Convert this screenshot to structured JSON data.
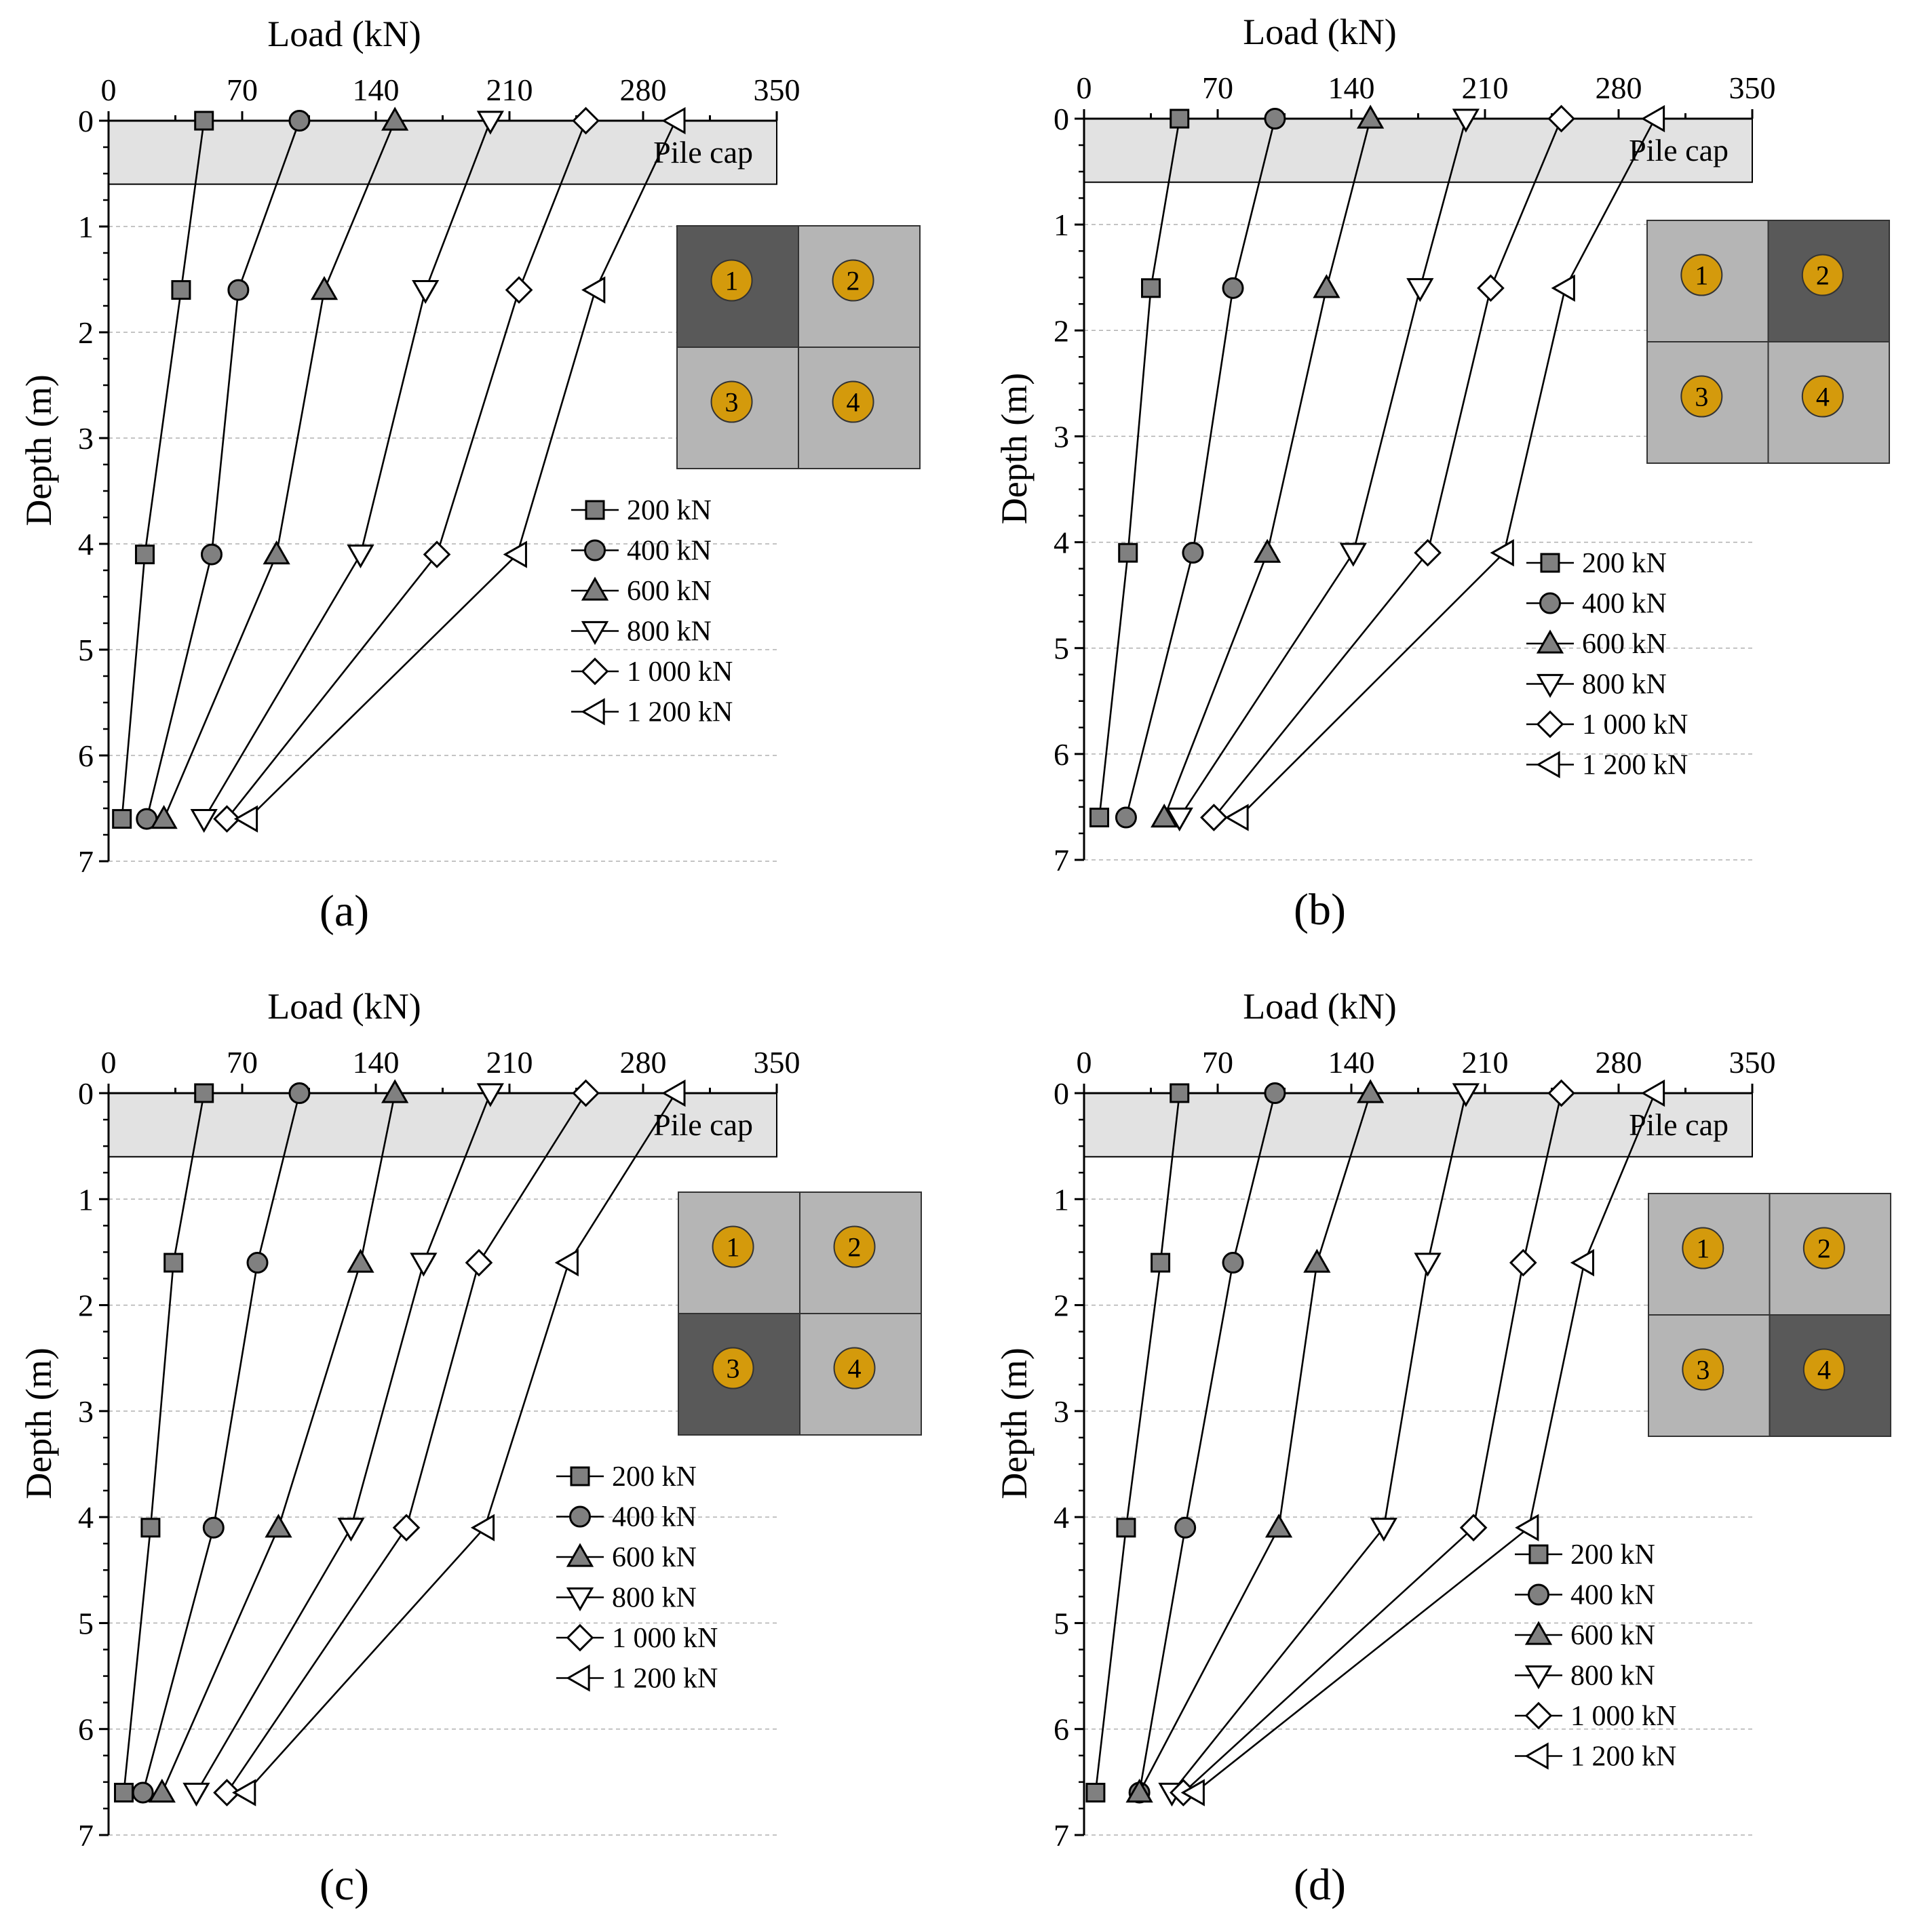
{
  "figure": {
    "x_axis_label": "Load (kN)",
    "y_axis_label": "Depth (m)",
    "cap_label": "Pile cap",
    "pile_labels": [
      "1",
      "2",
      "3",
      "4"
    ]
  },
  "legend": {
    "entries": [
      "200 kN",
      "400 kN",
      "600 kN",
      "800 kN",
      "1 000 kN",
      "1 200 kN"
    ],
    "markers": [
      "square-filled",
      "circle-filled",
      "triangle-up-filled",
      "triangle-down-open",
      "diamond-open",
      "triangle-left-open"
    ]
  },
  "colors": {
    "filled_marker": "#808080",
    "open_marker": "#ffffff",
    "pile_cap_band": "#e2e2e2",
    "grid_light": "#b5b5b5",
    "grid_dark": "#595959",
    "pile_circle": "#d49a0c",
    "gridline": "#b0b0b0"
  },
  "chart_data": [
    {
      "type": "line",
      "panel_label": "(a)",
      "highlighted_pile": 1,
      "xlabel": "Load (kN)",
      "ylabel": "Depth (m)",
      "xlim": [
        0,
        350
      ],
      "ylim": [
        7,
        0
      ],
      "x_ticks": [
        0,
        70,
        140,
        210,
        280,
        350
      ],
      "y_ticks": [
        0,
        1,
        2,
        3,
        4,
        5,
        6,
        7
      ],
      "y_axis_reversed": true,
      "grid": "horizontal dashed",
      "pile_cap_depth": [
        0,
        0.6
      ],
      "depths": [
        0,
        1.6,
        4.1,
        6.6
      ],
      "series": [
        {
          "name": "200 kN",
          "x": [
            50,
            38,
            19,
            7
          ]
        },
        {
          "name": "400 kN",
          "x": [
            100,
            68,
            54,
            20
          ]
        },
        {
          "name": "600 kN",
          "x": [
            150,
            113,
            88,
            29
          ]
        },
        {
          "name": "800 kN",
          "x": [
            200,
            166,
            132,
            50
          ]
        },
        {
          "name": "1 000 kN",
          "x": [
            250,
            215,
            172,
            62
          ]
        },
        {
          "name": "1 200 kN",
          "x": [
            297,
            255,
            214,
            73
          ]
        }
      ]
    },
    {
      "type": "line",
      "panel_label": "(b)",
      "highlighted_pile": 2,
      "xlabel": "Load (kN)",
      "ylabel": "Depth (m)",
      "xlim": [
        0,
        350
      ],
      "ylim": [
        7,
        0
      ],
      "x_ticks": [
        0,
        70,
        140,
        210,
        280,
        350
      ],
      "y_ticks": [
        0,
        1,
        2,
        3,
        4,
        5,
        6,
        7
      ],
      "y_axis_reversed": true,
      "grid": "horizontal dashed",
      "pile_cap_depth": [
        0,
        0.6
      ],
      "depths": [
        0,
        1.6,
        4.1,
        6.6
      ],
      "series": [
        {
          "name": "200 kN",
          "x": [
            50,
            35,
            23,
            8
          ]
        },
        {
          "name": "400 kN",
          "x": [
            100,
            78,
            57,
            22
          ]
        },
        {
          "name": "600 kN",
          "x": [
            150,
            127,
            96,
            42
          ]
        },
        {
          "name": "800 kN",
          "x": [
            200,
            176,
            141,
            50
          ]
        },
        {
          "name": "1 000 kN",
          "x": [
            250,
            213,
            180,
            68
          ]
        },
        {
          "name": "1 200 kN",
          "x": [
            299,
            252,
            220,
            81
          ]
        }
      ]
    },
    {
      "type": "line",
      "panel_label": "(c)",
      "highlighted_pile": 3,
      "xlabel": "Load (kN)",
      "ylabel": "Depth (m)",
      "xlim": [
        0,
        350
      ],
      "ylim": [
        7,
        0
      ],
      "x_ticks": [
        0,
        70,
        140,
        210,
        280,
        350
      ],
      "y_ticks": [
        0,
        1,
        2,
        3,
        4,
        5,
        6,
        7
      ],
      "y_axis_reversed": true,
      "grid": "horizontal dashed",
      "pile_cap_depth": [
        0,
        0.6
      ],
      "depths": [
        0,
        1.6,
        4.1,
        6.6
      ],
      "series": [
        {
          "name": "200 kN",
          "x": [
            50,
            34,
            22,
            8
          ]
        },
        {
          "name": "400 kN",
          "x": [
            100,
            78,
            55,
            18
          ]
        },
        {
          "name": "600 kN",
          "x": [
            150,
            132,
            89,
            28
          ]
        },
        {
          "name": "800 kN",
          "x": [
            200,
            165,
            127,
            46
          ]
        },
        {
          "name": "1 000 kN",
          "x": [
            250,
            194,
            156,
            62
          ]
        },
        {
          "name": "1 200 kN",
          "x": [
            297,
            241,
            197,
            72
          ]
        }
      ]
    },
    {
      "type": "line",
      "panel_label": "(d)",
      "highlighted_pile": 4,
      "xlabel": "Load (kN)",
      "ylabel": "Depth (m)",
      "xlim": [
        0,
        350
      ],
      "ylim": [
        7,
        0
      ],
      "x_ticks": [
        0,
        70,
        140,
        210,
        280,
        350
      ],
      "y_ticks": [
        0,
        1,
        2,
        3,
        4,
        5,
        6,
        7
      ],
      "y_axis_reversed": true,
      "grid": "horizontal dashed",
      "pile_cap_depth": [
        0,
        0.6
      ],
      "depths": [
        0,
        1.6,
        4.1,
        6.6
      ],
      "series": [
        {
          "name": "200 kN",
          "x": [
            50,
            40,
            22,
            6
          ]
        },
        {
          "name": "400 kN",
          "x": [
            100,
            78,
            53,
            29
          ]
        },
        {
          "name": "600 kN",
          "x": [
            150,
            122,
            102,
            29
          ]
        },
        {
          "name": "800 kN",
          "x": [
            200,
            180,
            157,
            46
          ]
        },
        {
          "name": "1 000 kN",
          "x": [
            250,
            230,
            204,
            52
          ]
        },
        {
          "name": "1 200 kN",
          "x": [
            299,
            262,
            233,
            58
          ]
        }
      ]
    }
  ]
}
